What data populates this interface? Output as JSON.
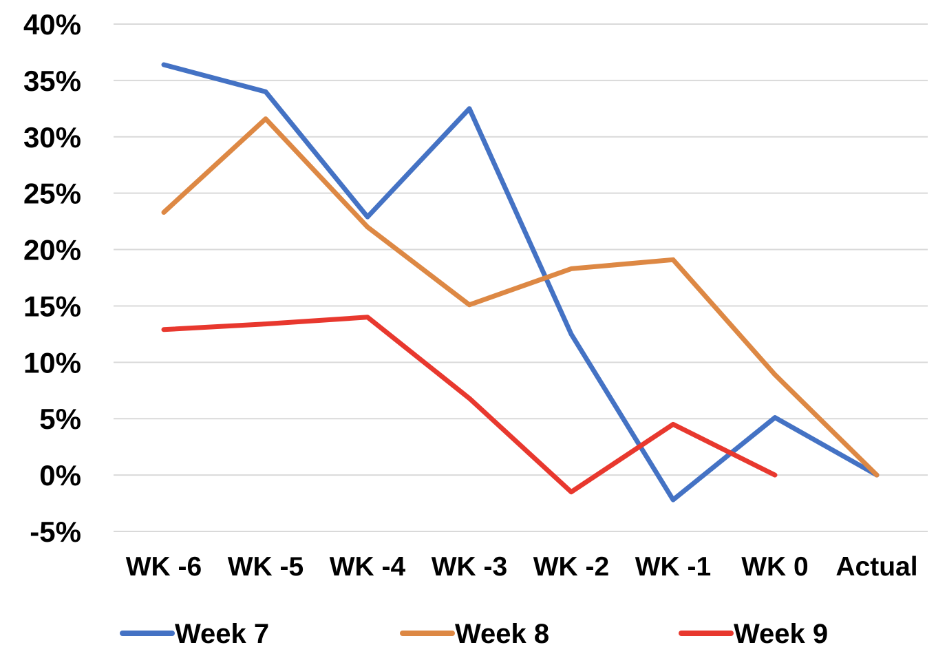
{
  "chart_data": {
    "type": "line",
    "title": "",
    "xlabel": "",
    "ylabel": "",
    "categories": [
      "WK -6",
      "WK -5",
      "WK -4",
      "WK -3",
      "WK -2",
      "WK -1",
      "WK 0",
      "Actual"
    ],
    "y_ticks": [
      "40%",
      "35%",
      "30%",
      "25%",
      "20%",
      "15%",
      "10%",
      "5%",
      "0%",
      "-5%"
    ],
    "ylim": [
      -5,
      40
    ],
    "y_unit": "%",
    "grid": true,
    "legend_position": "bottom",
    "series": [
      {
        "name": "Week 7",
        "color": "#4472C4",
        "values": [
          36.4,
          34.0,
          22.9,
          32.5,
          12.5,
          -2.2,
          5.1,
          0.0
        ]
      },
      {
        "name": "Week 8",
        "color": "#DD8844",
        "values": [
          23.3,
          31.6,
          22.0,
          15.1,
          18.3,
          19.1,
          8.9,
          0.0
        ]
      },
      {
        "name": "Week 9",
        "color": "#E8382E",
        "values": [
          12.9,
          13.4,
          14.0,
          6.8,
          -1.5,
          4.5,
          0.0,
          null
        ]
      }
    ]
  }
}
